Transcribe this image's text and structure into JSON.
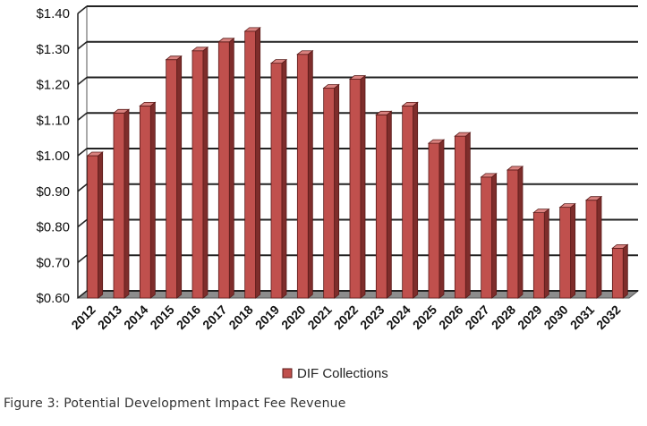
{
  "chart_data": {
    "type": "bar",
    "title": "",
    "xlabel": "",
    "ylabel": "",
    "categories": [
      "2012",
      "2013",
      "2014",
      "2015",
      "2016",
      "2017",
      "2018",
      "2019",
      "2020",
      "2021",
      "2022",
      "2023",
      "2024",
      "2025",
      "2026",
      "2027",
      "2028",
      "2029",
      "2030",
      "2031",
      "2032"
    ],
    "series": [
      {
        "name": "DIF Collections",
        "values": [
          1.0,
          1.12,
          1.14,
          1.27,
          1.295,
          1.32,
          1.35,
          1.26,
          1.285,
          1.19,
          1.215,
          1.115,
          1.14,
          1.035,
          1.055,
          0.94,
          0.96,
          0.84,
          0.855,
          0.875,
          0.74
        ]
      }
    ],
    "ylim": [
      0.6,
      1.4
    ],
    "yticks": [
      0.6,
      0.7,
      0.8,
      0.9,
      1.0,
      1.1,
      1.2,
      1.3,
      1.4
    ],
    "ytick_labels": [
      "$0.60",
      "$0.70",
      "$0.80",
      "$0.90",
      "$1.00",
      "$1.10",
      "$1.20",
      "$1.30",
      "$1.40"
    ],
    "grid": true,
    "legend": "bottom-center",
    "bar_color": "#c0504d"
  },
  "caption": "Figure 3: Potential Development Impact Fee Revenue"
}
